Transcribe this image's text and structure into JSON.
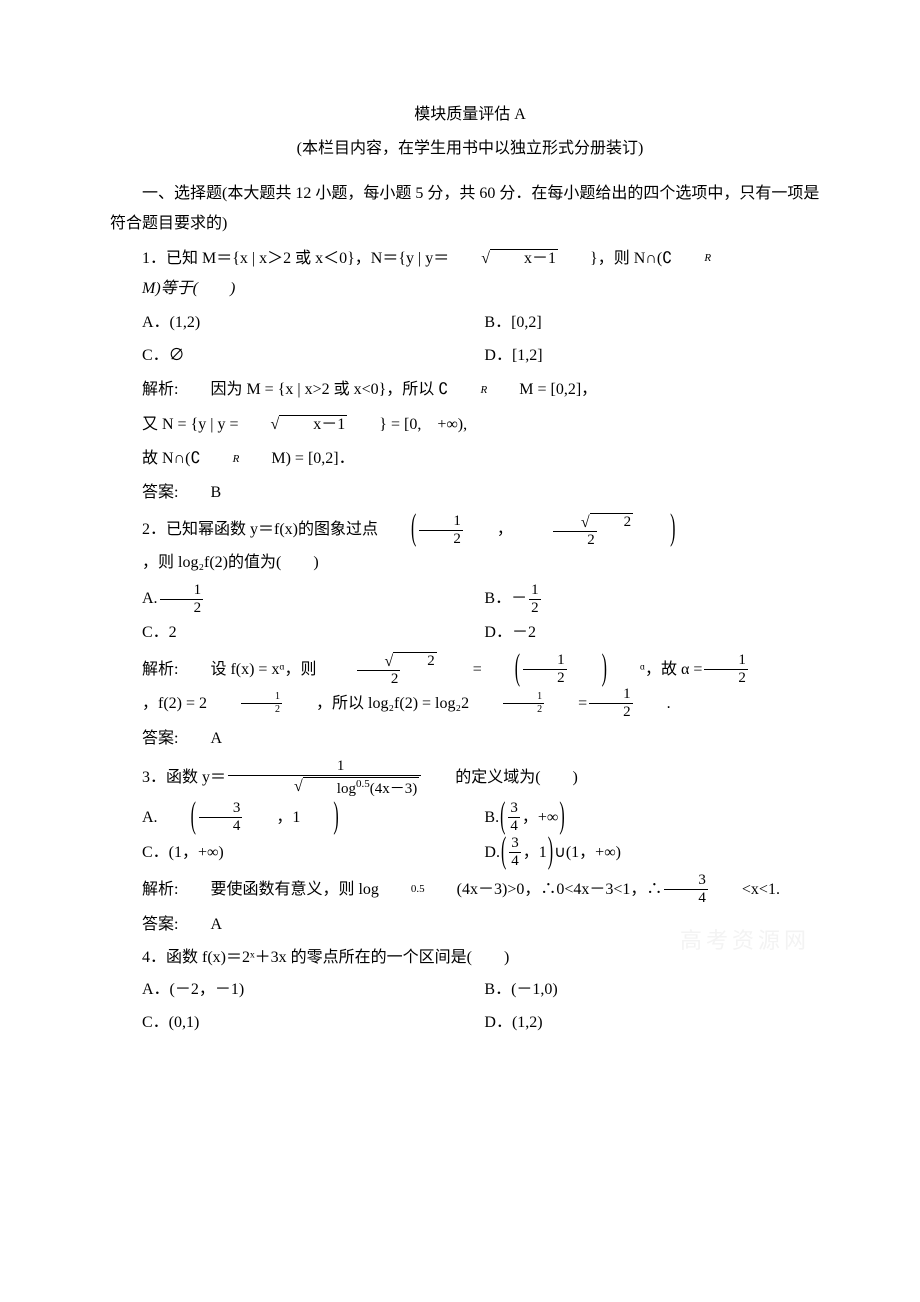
{
  "header": {
    "title": "模块质量评估 A",
    "subtitle": "(本栏目内容，在学生用书中以独立形式分册装订)"
  },
  "section_heading": "一、选择题(本大题共 12 小题，每小题 5 分，共 60 分．在每小题给出的四个选项中，只有一项是符合题目要求的)",
  "q1": {
    "stem_pre": "1．已知 M＝{x | x＞2 或 x＜0}，N＝{y | y＝",
    "sqrt_arg": "x－1",
    "stem_post": "}，则 N∩(∁",
    "stem_sub": "R",
    "stem_post2": "M)等于(　　)",
    "A": "A．(1,2)",
    "B": "B．[0,2]",
    "C": "C．∅",
    "D": "D．[1,2]",
    "sol_pre": "解析:　　因为 M = {x | x>2 或 x<0}，所以 ∁",
    "sol_sub": "R",
    "sol_post": "M = [0,2]，",
    "sol2_pre": "又 N = {y | y = ",
    "sol2_sqrt": "x－1",
    "sol2_post": "} = [0,　+∞),",
    "sol3_pre": "故 N∩(∁",
    "sol3_sub": "R",
    "sol3_post": "M) = [0,2]．",
    "ans": "答案:　　B"
  },
  "q2": {
    "stem_pre": "2．已知幂函数 y＝f(x)的图象过点",
    "pt_a_num": "1",
    "pt_a_den": "2",
    "pt_b_sqrt": "2",
    "pt_b_den": "2",
    "stem_post": "，则 log₂f(2)的值为(　　)",
    "A_pre": "A.",
    "A_num": "1",
    "A_den": "2",
    "B_pre": "B．－",
    "B_num": "1",
    "B_den": "2",
    "C": "C．2",
    "D": "D．－2",
    "sol_pre": "解析:　　设 f(x) = xᵅ，则",
    "sol_f1_sqrt": "2",
    "sol_f1_den": "2",
    "sol_eq": " = ",
    "sol_f2_num": "1",
    "sol_f2_den": "2",
    "sol_mid": "ᵅ，故 α = ",
    "sol_a_num": "1",
    "sol_a_den": "2",
    "sol_mid2": "，f(2) = 2",
    "sol_e_num": "1",
    "sol_e_den": "2",
    "sol_mid3": "，所以 log₂f(2) = log₂2",
    "sol_e2_num": "1",
    "sol_e2_den": "2",
    "sol_mid4": " = ",
    "sol_r_num": "1",
    "sol_r_den": "2",
    "sol_end": ".",
    "ans": "答案:　　A"
  },
  "q3": {
    "stem_pre": "3．函数 y＝",
    "num": "1",
    "den_sqrt_pre": "log",
    "den_sqrt_exp": "0.5",
    "den_sqrt_post": "(4x－3)",
    "stem_post": "的定义域为(　　)",
    "A_pre": "A.",
    "A_num": "3",
    "A_den": "4",
    "A_post": "，1",
    "B_pre": "B.",
    "B_num": "3",
    "B_den": "4",
    "B_post": "，+∞",
    "C": "C．(1，+∞)",
    "D_pre": "D.",
    "D_num": "3",
    "D_den": "4",
    "D_post": "，1",
    "D_tail": "∪(1，+∞)",
    "sol_pre": "解析:　　要使函数有意义，则 log",
    "sol_sub": "0.5",
    "sol_mid1": "(4x－3)>0，∴0<4x－3<1，∴",
    "sol_f_num": "3",
    "sol_f_den": "4",
    "sol_post": "<x<1.",
    "ans": "答案:　　A"
  },
  "q4": {
    "stem": "4．函数 f(x)＝2ˣ＋3x 的零点所在的一个区间是(　　)",
    "A": "A．(－2，－1)",
    "B": "B．(－1,0)",
    "C": "C．(0,1)",
    "D": "D．(1,2)"
  },
  "watermark": "高考资源网"
}
